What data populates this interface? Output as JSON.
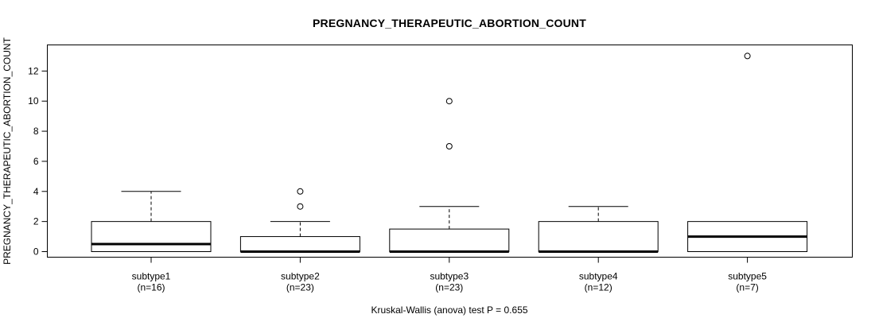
{
  "title": "PREGNANCY_THERAPEUTIC_ABORTION_COUNT",
  "colors": {
    "stroke": "#000000",
    "box_fill": "#ffffff",
    "background": "#ffffff"
  },
  "chart_data": {
    "type": "boxplot",
    "title": "PREGNANCY_THERAPEUTIC_ABORTION_COUNT",
    "ylabel": "PREGNANCY_THERAPEUTIC_ABORTION_COUNT",
    "annotation": "Kruskal-Wallis (anova) test P = 0.655",
    "yticks": [
      0,
      2,
      4,
      6,
      8,
      10,
      12
    ],
    "ylim": [
      -0.5,
      13.7
    ],
    "grid": false,
    "legend": "none",
    "groups": [
      {
        "label": "subtype1",
        "sublabel": "(n=16)",
        "n": 16,
        "whisker_low": 0,
        "q1": 0,
        "median": 0.5,
        "q3": 2,
        "whisker_high": 4,
        "outliers": []
      },
      {
        "label": "subtype2",
        "sublabel": "(n=23)",
        "n": 23,
        "whisker_low": 0,
        "q1": 0,
        "median": 0,
        "q3": 1,
        "whisker_high": 2,
        "outliers": [
          3,
          4
        ]
      },
      {
        "label": "subtype3",
        "sublabel": "(n=23)",
        "n": 23,
        "whisker_low": 0,
        "q1": 0,
        "median": 0,
        "q3": 1.5,
        "whisker_high": 3,
        "outliers": [
          7,
          10
        ]
      },
      {
        "label": "subtype4",
        "sublabel": "(n=12)",
        "n": 12,
        "whisker_low": 0,
        "q1": 0,
        "median": 0,
        "q3": 2,
        "whisker_high": 3,
        "outliers": []
      },
      {
        "label": "subtype5",
        "sublabel": "(n=7)",
        "n": 7,
        "whisker_low": 0,
        "q1": 0,
        "median": 1,
        "q3": 2,
        "whisker_high": 2,
        "outliers": [
          13
        ]
      }
    ]
  }
}
